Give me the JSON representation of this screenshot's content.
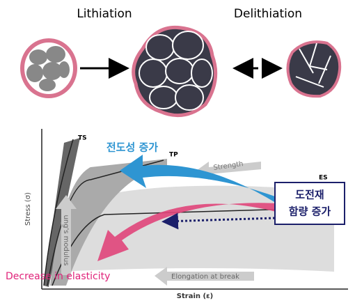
{
  "top": {
    "lithiation": "Lithiation",
    "delithiation": "Delithiation"
  },
  "chart": {
    "curve_labels": [
      "TS",
      "TP",
      "ES"
    ],
    "axis_labels": {
      "y": "Stress (σ)",
      "x": "Strain (ε)"
    },
    "arrow_labels": {
      "strength": "Strength",
      "modulus": "ung's modulus",
      "elongation": "Elongation at break"
    },
    "annotations": {
      "conductivity": "전도성 증가",
      "additive": [
        "도전재",
        "함량 증가"
      ],
      "elasticity": "Decrease in elasticity"
    }
  }
}
